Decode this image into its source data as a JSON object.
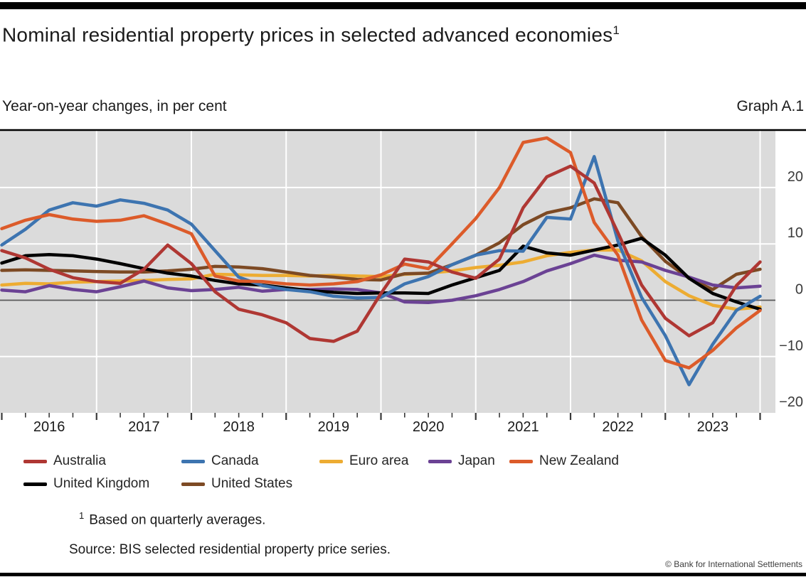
{
  "page": {
    "title": "Nominal residential property prices in selected advanced economies",
    "title_superscript": "1",
    "subtitle": "Year-on-year changes, in per cent",
    "graph_label": "Graph A.1",
    "footnote_marker": "1",
    "footnote_text": "Based on quarterly averages.",
    "source_text": "Source: BIS selected residential property price series.",
    "copyright": "© Bank for International Settlements"
  },
  "chart_data": {
    "type": "line",
    "title": "Nominal residential property prices in selected advanced economies",
    "ylabel": "Year-on-year changes, in per cent",
    "x_unit": "quarter",
    "quarters": [
      "2015-Q4",
      "2016-Q1",
      "2016-Q2",
      "2016-Q3",
      "2016-Q4",
      "2017-Q1",
      "2017-Q2",
      "2017-Q3",
      "2017-Q4",
      "2018-Q1",
      "2018-Q2",
      "2018-Q3",
      "2018-Q4",
      "2019-Q1",
      "2019-Q2",
      "2019-Q3",
      "2019-Q4",
      "2020-Q1",
      "2020-Q2",
      "2020-Q3",
      "2020-Q4",
      "2021-Q1",
      "2021-Q2",
      "2021-Q3",
      "2021-Q4",
      "2022-Q1",
      "2022-Q2",
      "2022-Q3",
      "2022-Q4",
      "2023-Q1",
      "2023-Q2",
      "2023-Q3",
      "2023-Q4"
    ],
    "year_tick_labels": [
      "2016",
      "2017",
      "2018",
      "2019",
      "2020",
      "2021",
      "2022",
      "2023"
    ],
    "ylim": [
      -20,
      30
    ],
    "yticks": [
      20,
      10,
      0,
      -10,
      -20
    ],
    "ytick_labels": [
      "20",
      "10",
      "0",
      "−10",
      "−20"
    ],
    "grid": "on",
    "zero_line": true,
    "legend_position": "bottom-left",
    "plot_bg_color": "#DBDBDB",
    "gridline_color": "#FFFFFF",
    "zero_line_color": "#58585A",
    "axis_text_color": "#3a3a3a",
    "series": [
      {
        "name": "Australia",
        "color": "#AF3733",
        "values": [
          8.8,
          7.5,
          5.5,
          4.0,
          3.3,
          3.0,
          5.5,
          9.8,
          6.5,
          1.5,
          -1.6,
          -2.6,
          -4.0,
          -6.8,
          -7.3,
          -5.5,
          1.2,
          7.3,
          6.8,
          5.0,
          3.9,
          7.3,
          16.4,
          21.9,
          23.8,
          20.8,
          12.0,
          2.7,
          -3.2,
          -6.3,
          -4.0,
          2.6,
          6.8
        ]
      },
      {
        "name": "Canada",
        "color": "#3D74B0",
        "values": [
          9.8,
          12.6,
          16.0,
          17.3,
          16.7,
          17.8,
          17.2,
          16.0,
          13.5,
          8.8,
          4.1,
          2.6,
          1.9,
          1.5,
          0.7,
          0.4,
          0.5,
          2.9,
          4.2,
          6.3,
          8.0,
          8.8,
          8.7,
          14.7,
          14.4,
          25.5,
          10.5,
          0.5,
          -6.3,
          -15.0,
          -7.8,
          -1.8,
          0.7
        ]
      },
      {
        "name": "Euro area",
        "color": "#EDAC32",
        "values": [
          2.7,
          3.0,
          2.9,
          3.2,
          3.3,
          3.4,
          3.5,
          3.7,
          3.8,
          4.6,
          4.5,
          4.4,
          4.4,
          4.3,
          4.4,
          4.3,
          4.2,
          4.6,
          4.8,
          5.2,
          5.8,
          6.2,
          6.8,
          7.9,
          8.5,
          8.9,
          8.9,
          7.0,
          3.3,
          0.8,
          -0.9,
          -1.6,
          -1.2
        ]
      },
      {
        "name": "Japan",
        "color": "#6B4294",
        "values": [
          1.8,
          1.5,
          2.6,
          1.9,
          1.5,
          2.4,
          3.4,
          2.2,
          1.7,
          1.9,
          2.3,
          1.6,
          1.9,
          1.9,
          2.0,
          1.9,
          1.3,
          -0.3,
          -0.4,
          0.0,
          0.8,
          1.9,
          3.3,
          5.2,
          6.5,
          8.0,
          7.1,
          6.8,
          5.3,
          4.1,
          2.7,
          2.2,
          2.5
        ]
      },
      {
        "name": "New Zealand",
        "color": "#DC5B2A",
        "values": [
          12.7,
          14.2,
          15.2,
          14.4,
          14.0,
          14.2,
          15.0,
          13.5,
          11.8,
          4.3,
          3.4,
          3.3,
          2.9,
          2.7,
          2.9,
          3.3,
          4.5,
          6.4,
          5.6,
          10.0,
          14.5,
          20.0,
          28.0,
          28.8,
          26.2,
          13.8,
          8.0,
          -3.5,
          -10.7,
          -12.0,
          -8.9,
          -4.9,
          -1.8
        ]
      },
      {
        "name": "United Kingdom",
        "color": "#000000",
        "values": [
          6.6,
          7.9,
          8.1,
          7.9,
          7.3,
          6.5,
          5.6,
          4.8,
          4.3,
          3.5,
          2.9,
          2.7,
          2.2,
          1.7,
          1.4,
          1.2,
          1.3,
          1.3,
          1.2,
          2.7,
          4.0,
          5.3,
          9.6,
          8.4,
          8.0,
          8.9,
          9.8,
          11.0,
          8.0,
          3.9,
          1.2,
          -0.3,
          -1.6
        ]
      },
      {
        "name": "United States",
        "color": "#7D4A24",
        "values": [
          5.3,
          5.4,
          5.3,
          5.2,
          5.1,
          5.0,
          5.0,
          5.2,
          5.5,
          6.0,
          5.9,
          5.6,
          5.0,
          4.4,
          4.1,
          3.7,
          3.6,
          4.7,
          4.8,
          6.3,
          8.0,
          10.2,
          13.4,
          15.5,
          16.4,
          18.0,
          17.3,
          11.3,
          6.9,
          3.9,
          1.9,
          4.6,
          5.5
        ]
      }
    ]
  }
}
